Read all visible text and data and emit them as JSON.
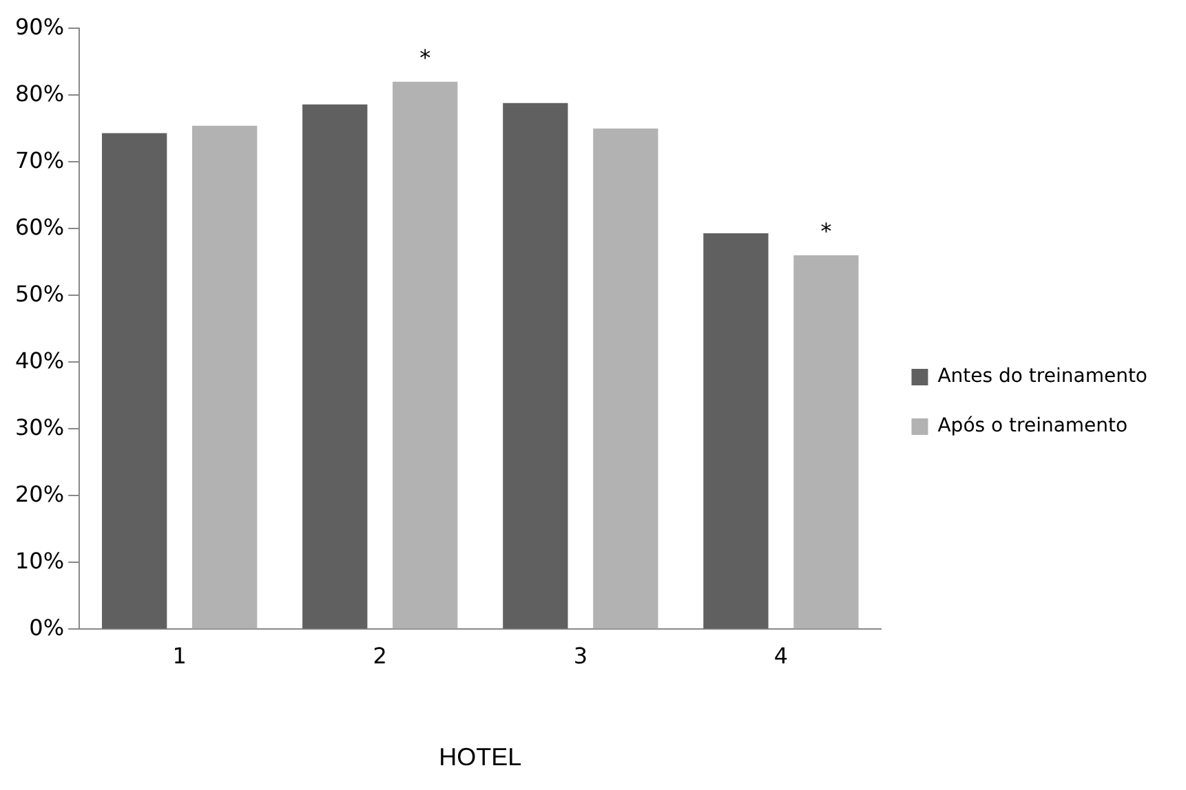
{
  "chart_data": {
    "type": "bar",
    "xlabel": "HOTEL",
    "categories": [
      "1",
      "2",
      "3",
      "4"
    ],
    "series": [
      {
        "name": "Antes do treinamento",
        "color": "#606060",
        "values": [
          74.3,
          78.6,
          78.8,
          59.3
        ]
      },
      {
        "name": "Após o treinamento",
        "color": "#b2b2b2",
        "values": [
          75.4,
          82.0,
          75.0,
          56.0
        ]
      }
    ],
    "ylim": [
      0,
      90
    ],
    "yticks": [
      {
        "value": 0,
        "label": "0%"
      },
      {
        "value": 10,
        "label": "10%"
      },
      {
        "value": 20,
        "label": "20%"
      },
      {
        "value": 30,
        "label": "30%"
      },
      {
        "value": 40,
        "label": "40%"
      },
      {
        "value": 50,
        "label": "50%"
      },
      {
        "value": 60,
        "label": "60%"
      },
      {
        "value": 70,
        "label": "70%"
      },
      {
        "value": 80,
        "label": "80%"
      },
      {
        "value": 90,
        "label": "90%"
      }
    ],
    "annotations": [
      "*",
      "*"
    ],
    "legend": "right",
    "grid": false
  }
}
